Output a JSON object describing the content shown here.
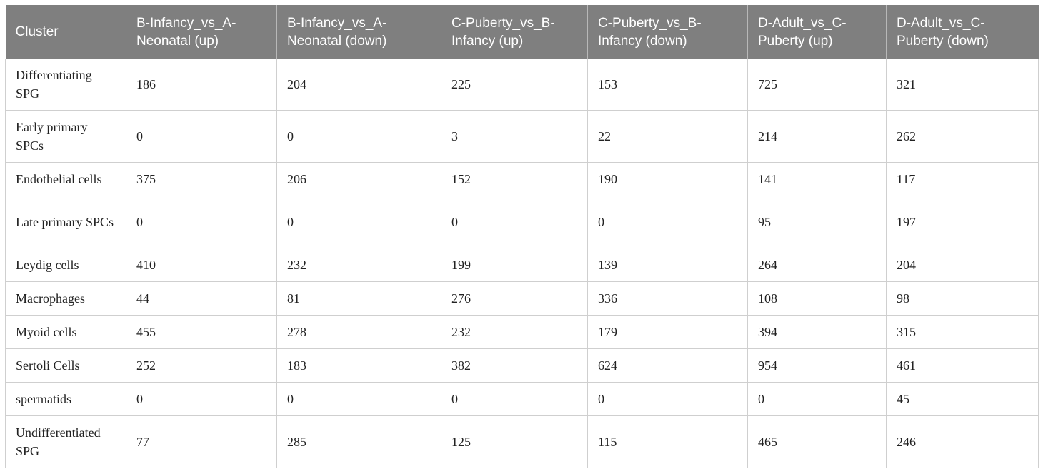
{
  "table": {
    "headers": [
      "Cluster",
      "B-Infancy_vs_A-Neonatal (up)",
      "B-Infancy_vs_A-Neonatal (down)",
      "C-Puberty_vs_B-Infancy (up)",
      "C-Puberty_vs_B-Infancy (down)",
      "D-Adult_vs_C-Puberty (up)",
      "D-Adult_vs_C-Puberty (down)"
    ],
    "rows": [
      [
        "Differentiating SPG",
        "186",
        "204",
        "225",
        "153",
        "725",
        "321"
      ],
      [
        "Early primary SPCs",
        "0",
        "0",
        "3",
        "22",
        "214",
        "262"
      ],
      [
        "Endothelial cells",
        "375",
        "206",
        "152",
        "190",
        "141",
        "117"
      ],
      [
        "Late primary SPCs",
        "0",
        "0",
        "0",
        "0",
        "95",
        "197"
      ],
      [
        "Leydig cells",
        "410",
        "232",
        "199",
        "139",
        "264",
        "204"
      ],
      [
        "Macrophages",
        "44",
        "81",
        "276",
        "336",
        "108",
        "98"
      ],
      [
        "Myoid cells",
        "455",
        "278",
        "232",
        "179",
        "394",
        "315"
      ],
      [
        "Sertoli Cells",
        "252",
        "183",
        "382",
        "624",
        "954",
        "461"
      ],
      [
        "spermatids",
        "0",
        "0",
        "0",
        "0",
        "0",
        "45"
      ],
      [
        "Undifferentiated SPG",
        "77",
        "285",
        "125",
        "115",
        "465",
        "246"
      ]
    ]
  }
}
